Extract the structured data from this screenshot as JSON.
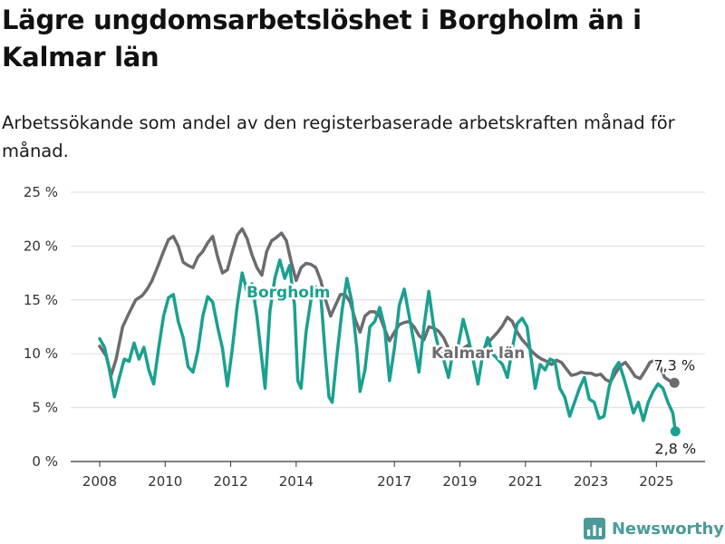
{
  "title": "Lägre ungdomsarbetslöshet i Borgholm än i Kalmar län",
  "subtitle": "Arbetssökande som andel av den registerbaserade arbetskraften månad för månad.",
  "brand": {
    "name": "Newsworthy",
    "icon": "bar-chart-logo-icon"
  },
  "chart_data": {
    "type": "line",
    "x_unit": "year (decimal)",
    "ylim": [
      0,
      25
    ],
    "xlim": [
      2007.6,
      2026.5
    ],
    "y_ticks": [
      {
        "value": 0,
        "label": "0 %"
      },
      {
        "value": 5,
        "label": "5 %"
      },
      {
        "value": 10,
        "label": "10 %"
      },
      {
        "value": 15,
        "label": "15 %"
      },
      {
        "value": 20,
        "label": "20 %"
      },
      {
        "value": 25,
        "label": "25 %"
      }
    ],
    "x_ticks": [
      {
        "value": 2008,
        "label": "2008"
      },
      {
        "value": 2010,
        "label": "2010"
      },
      {
        "value": 2012,
        "label": "2012"
      },
      {
        "value": 2014,
        "label": "2014"
      },
      {
        "value": 2017,
        "label": "2017"
      },
      {
        "value": 2019,
        "label": "2019"
      },
      {
        "value": 2021,
        "label": "2021"
      },
      {
        "value": 2023,
        "label": "2023"
      },
      {
        "value": 2025,
        "label": "2025"
      }
    ],
    "grid": true,
    "legend": "inline labels",
    "series": [
      {
        "name": "Kalmar län",
        "color": "#6d6b70",
        "end_label": "7,3 %",
        "points": [
          [
            2008.0,
            10.7
          ],
          [
            2008.2,
            9.8
          ],
          [
            2008.35,
            8.0
          ],
          [
            2008.5,
            9.5
          ],
          [
            2008.7,
            12.5
          ],
          [
            2008.9,
            13.8
          ],
          [
            2009.1,
            15.0
          ],
          [
            2009.3,
            15.4
          ],
          [
            2009.45,
            16.0
          ],
          [
            2009.6,
            16.8
          ],
          [
            2009.8,
            18.3
          ],
          [
            2009.95,
            19.5
          ],
          [
            2010.1,
            20.6
          ],
          [
            2010.25,
            20.9
          ],
          [
            2010.4,
            20.0
          ],
          [
            2010.55,
            18.5
          ],
          [
            2010.7,
            18.2
          ],
          [
            2010.85,
            18.0
          ],
          [
            2011.0,
            19.0
          ],
          [
            2011.15,
            19.5
          ],
          [
            2011.3,
            20.3
          ],
          [
            2011.45,
            20.9
          ],
          [
            2011.6,
            19.0
          ],
          [
            2011.75,
            17.5
          ],
          [
            2011.9,
            17.8
          ],
          [
            2012.05,
            19.5
          ],
          [
            2012.2,
            21.0
          ],
          [
            2012.35,
            21.6
          ],
          [
            2012.5,
            20.7
          ],
          [
            2012.65,
            19.2
          ],
          [
            2012.8,
            18.0
          ],
          [
            2012.95,
            17.3
          ],
          [
            2013.1,
            19.5
          ],
          [
            2013.25,
            20.5
          ],
          [
            2013.4,
            20.8
          ],
          [
            2013.55,
            21.2
          ],
          [
            2013.7,
            20.5
          ],
          [
            2013.85,
            18.5
          ],
          [
            2014.0,
            16.8
          ],
          [
            2014.15,
            18.0
          ],
          [
            2014.3,
            18.4
          ],
          [
            2014.45,
            18.3
          ],
          [
            2014.6,
            18.0
          ],
          [
            2014.75,
            16.8
          ],
          [
            2014.9,
            15.0
          ],
          [
            2015.05,
            13.5
          ],
          [
            2015.2,
            14.5
          ],
          [
            2015.35,
            15.5
          ],
          [
            2015.5,
            15.5
          ],
          [
            2015.65,
            14.8
          ],
          [
            2015.8,
            13.2
          ],
          [
            2015.95,
            12.0
          ],
          [
            2016.1,
            13.5
          ],
          [
            2016.25,
            13.9
          ],
          [
            2016.4,
            13.9
          ],
          [
            2016.55,
            13.5
          ],
          [
            2016.7,
            12.3
          ],
          [
            2016.85,
            11.2
          ],
          [
            2017.0,
            12.0
          ],
          [
            2017.15,
            12.7
          ],
          [
            2017.3,
            12.9
          ],
          [
            2017.45,
            13.0
          ],
          [
            2017.6,
            12.5
          ],
          [
            2017.75,
            11.7
          ],
          [
            2017.9,
            11.3
          ],
          [
            2018.05,
            12.5
          ],
          [
            2018.2,
            12.4
          ],
          [
            2018.35,
            12.1
          ],
          [
            2018.5,
            11.5
          ],
          [
            2018.65,
            10.5
          ],
          [
            2018.8,
            10.2
          ],
          [
            2018.95,
            10.0
          ],
          [
            2019.1,
            10.5
          ],
          [
            2019.25,
            10.8
          ],
          [
            2019.4,
            10.3
          ],
          [
            2019.55,
            10.0
          ],
          [
            2019.7,
            10.3
          ],
          [
            2019.85,
            11.0
          ],
          [
            2020.0,
            11.5
          ],
          [
            2020.15,
            12.0
          ],
          [
            2020.3,
            12.6
          ],
          [
            2020.45,
            13.4
          ],
          [
            2020.6,
            13.0
          ],
          [
            2020.75,
            12.0
          ],
          [
            2020.9,
            11.3
          ],
          [
            2021.05,
            10.8
          ],
          [
            2021.2,
            10.2
          ],
          [
            2021.35,
            9.8
          ],
          [
            2021.5,
            9.5
          ],
          [
            2021.65,
            9.3
          ],
          [
            2021.8,
            9.0
          ],
          [
            2021.95,
            9.4
          ],
          [
            2022.1,
            9.2
          ],
          [
            2022.25,
            8.6
          ],
          [
            2022.4,
            8.0
          ],
          [
            2022.55,
            8.1
          ],
          [
            2022.7,
            8.3
          ],
          [
            2022.85,
            8.2
          ],
          [
            2023.0,
            8.2
          ],
          [
            2023.15,
            8.0
          ],
          [
            2023.3,
            8.1
          ],
          [
            2023.45,
            7.6
          ],
          [
            2023.6,
            7.4
          ],
          [
            2023.75,
            8.2
          ],
          [
            2023.9,
            8.9
          ],
          [
            2024.05,
            9.2
          ],
          [
            2024.2,
            8.6
          ],
          [
            2024.35,
            7.9
          ],
          [
            2024.5,
            7.7
          ],
          [
            2024.65,
            8.4
          ],
          [
            2024.8,
            9.2
          ],
          [
            2024.95,
            9.4
          ],
          [
            2025.1,
            8.9
          ],
          [
            2025.25,
            7.8
          ],
          [
            2025.4,
            7.5
          ],
          [
            2025.55,
            7.3
          ]
        ]
      },
      {
        "name": "Borgholm",
        "color": "#1aa090",
        "end_label": "2,8 %",
        "points": [
          [
            2008.0,
            11.4
          ],
          [
            2008.15,
            10.6
          ],
          [
            2008.3,
            8.5
          ],
          [
            2008.45,
            6.0
          ],
          [
            2008.6,
            7.8
          ],
          [
            2008.75,
            9.5
          ],
          [
            2008.9,
            9.3
          ],
          [
            2009.05,
            11.0
          ],
          [
            2009.2,
            9.5
          ],
          [
            2009.35,
            10.6
          ],
          [
            2009.5,
            8.5
          ],
          [
            2009.65,
            7.2
          ],
          [
            2009.8,
            10.5
          ],
          [
            2009.95,
            13.5
          ],
          [
            2010.1,
            15.2
          ],
          [
            2010.25,
            15.5
          ],
          [
            2010.4,
            13.0
          ],
          [
            2010.55,
            11.5
          ],
          [
            2010.7,
            8.8
          ],
          [
            2010.85,
            8.3
          ],
          [
            2011.0,
            10.3
          ],
          [
            2011.15,
            13.5
          ],
          [
            2011.3,
            15.3
          ],
          [
            2011.45,
            14.8
          ],
          [
            2011.6,
            12.5
          ],
          [
            2011.75,
            10.5
          ],
          [
            2011.9,
            7.0
          ],
          [
            2012.05,
            10.5
          ],
          [
            2012.2,
            14.5
          ],
          [
            2012.35,
            17.5
          ],
          [
            2012.5,
            15.8
          ],
          [
            2012.65,
            16.5
          ],
          [
            2012.8,
            13.5
          ],
          [
            2012.95,
            9.5
          ],
          [
            2013.05,
            6.8
          ],
          [
            2013.2,
            14.0
          ],
          [
            2013.35,
            17.0
          ],
          [
            2013.5,
            18.7
          ],
          [
            2013.65,
            17.0
          ],
          [
            2013.8,
            18.2
          ],
          [
            2013.95,
            14.5
          ],
          [
            2014.05,
            7.5
          ],
          [
            2014.15,
            6.8
          ],
          [
            2014.3,
            12.0
          ],
          [
            2014.45,
            15.0
          ],
          [
            2014.6,
            16.2
          ],
          [
            2014.75,
            15.5
          ],
          [
            2014.9,
            9.5
          ],
          [
            2015.0,
            6.0
          ],
          [
            2015.1,
            5.5
          ],
          [
            2015.25,
            10.0
          ],
          [
            2015.4,
            14.0
          ],
          [
            2015.55,
            17.0
          ],
          [
            2015.7,
            14.8
          ],
          [
            2015.85,
            10.5
          ],
          [
            2015.95,
            6.5
          ],
          [
            2016.1,
            8.5
          ],
          [
            2016.25,
            12.5
          ],
          [
            2016.4,
            13.0
          ],
          [
            2016.55,
            14.3
          ],
          [
            2016.7,
            12.5
          ],
          [
            2016.85,
            7.5
          ],
          [
            2017.0,
            10.5
          ],
          [
            2017.15,
            14.5
          ],
          [
            2017.3,
            16.0
          ],
          [
            2017.45,
            13.5
          ],
          [
            2017.6,
            11.0
          ],
          [
            2017.75,
            8.3
          ],
          [
            2017.9,
            12.5
          ],
          [
            2018.05,
            15.8
          ],
          [
            2018.2,
            12.5
          ],
          [
            2018.35,
            10.5
          ],
          [
            2018.5,
            9.5
          ],
          [
            2018.65,
            7.8
          ],
          [
            2018.8,
            10.5
          ],
          [
            2018.95,
            10.8
          ],
          [
            2019.1,
            13.2
          ],
          [
            2019.25,
            11.5
          ],
          [
            2019.4,
            9.5
          ],
          [
            2019.55,
            7.2
          ],
          [
            2019.7,
            10.0
          ],
          [
            2019.85,
            11.5
          ],
          [
            2020.0,
            10.0
          ],
          [
            2020.15,
            9.5
          ],
          [
            2020.3,
            9.0
          ],
          [
            2020.45,
            7.8
          ],
          [
            2020.6,
            10.5
          ],
          [
            2020.75,
            12.8
          ],
          [
            2020.9,
            13.3
          ],
          [
            2021.05,
            12.5
          ],
          [
            2021.2,
            9.0
          ],
          [
            2021.3,
            6.8
          ],
          [
            2021.45,
            9.0
          ],
          [
            2021.6,
            8.5
          ],
          [
            2021.75,
            9.5
          ],
          [
            2021.9,
            9.3
          ],
          [
            2022.05,
            6.8
          ],
          [
            2022.2,
            6.0
          ],
          [
            2022.35,
            4.2
          ],
          [
            2022.5,
            5.5
          ],
          [
            2022.65,
            6.8
          ],
          [
            2022.8,
            7.8
          ],
          [
            2022.95,
            5.8
          ],
          [
            2023.1,
            5.5
          ],
          [
            2023.25,
            4.0
          ],
          [
            2023.4,
            4.2
          ],
          [
            2023.55,
            6.8
          ],
          [
            2023.7,
            8.5
          ],
          [
            2023.85,
            9.2
          ],
          [
            2024.0,
            7.8
          ],
          [
            2024.15,
            6.2
          ],
          [
            2024.3,
            4.5
          ],
          [
            2024.45,
            5.5
          ],
          [
            2024.6,
            3.8
          ],
          [
            2024.75,
            5.5
          ],
          [
            2024.9,
            6.5
          ],
          [
            2025.05,
            7.2
          ],
          [
            2025.2,
            6.8
          ],
          [
            2025.35,
            5.5
          ],
          [
            2025.5,
            4.5
          ],
          [
            2025.58,
            2.8
          ]
        ]
      }
    ]
  }
}
